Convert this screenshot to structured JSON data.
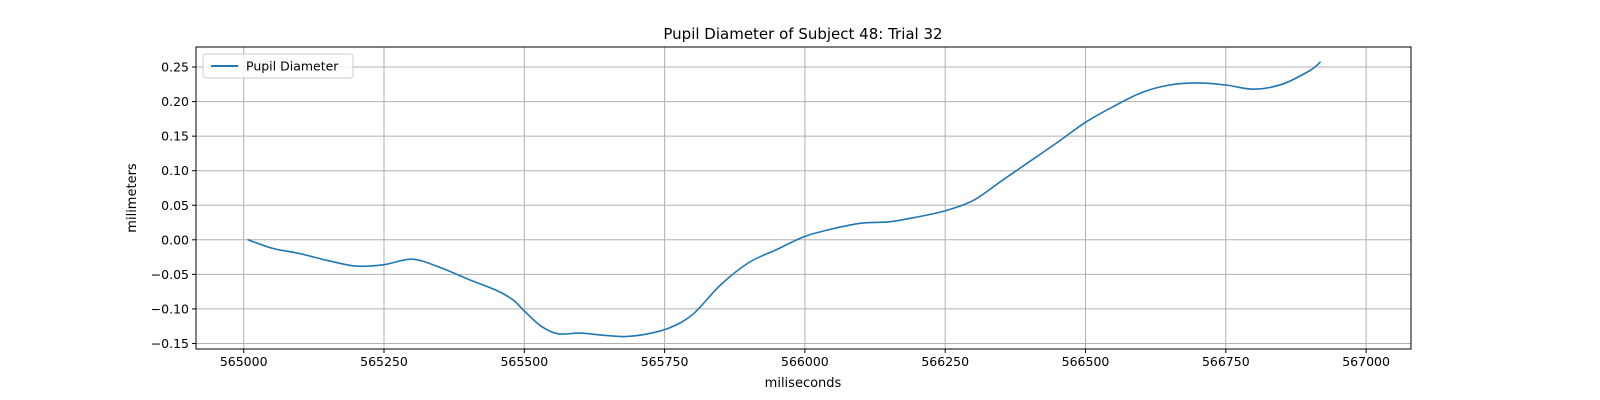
{
  "chart_data": {
    "type": "line",
    "title": "Pupil Diameter of Subject 48: Trial 32",
    "xlabel": "miliseconds",
    "ylabel": "milimeters",
    "xlim": [
      564915,
      567080
    ],
    "ylim": [
      -0.158,
      0.279
    ],
    "xticks": [
      565000,
      565250,
      565500,
      565750,
      566000,
      566250,
      566500,
      566750,
      567000
    ],
    "yticks": [
      -0.15,
      -0.1,
      -0.05,
      0.0,
      0.05,
      0.1,
      0.15,
      0.2,
      0.25
    ],
    "xtick_labels": [
      "565000",
      "565250",
      "565500",
      "565750",
      "566000",
      "566250",
      "566500",
      "566750",
      "567000"
    ],
    "ytick_labels": [
      "−0.15",
      "−0.10",
      "−0.05",
      "0.00",
      "0.05",
      "0.10",
      "0.15",
      "0.20",
      "0.25"
    ],
    "grid": true,
    "legend_position": "top-left",
    "series": [
      {
        "name": "Pupil Diameter",
        "color": "#1f77b4",
        "x": [
          565008,
          565050,
          565100,
          565150,
          565200,
          565250,
          565300,
          565350,
          565400,
          565450,
          565480,
          565500,
          565530,
          565560,
          565600,
          565640,
          565680,
          565720,
          565760,
          565800,
          565850,
          565900,
          565950,
          566000,
          566050,
          566100,
          566150,
          566200,
          566250,
          566300,
          566350,
          566400,
          566450,
          566500,
          566550,
          566600,
          566650,
          566700,
          566750,
          566800,
          566850,
          566900,
          566918
        ],
        "y": [
          0.0,
          -0.012,
          -0.02,
          -0.03,
          -0.038,
          -0.036,
          -0.028,
          -0.04,
          -0.057,
          -0.073,
          -0.087,
          -0.103,
          -0.125,
          -0.136,
          -0.135,
          -0.138,
          -0.14,
          -0.136,
          -0.127,
          -0.108,
          -0.065,
          -0.033,
          -0.014,
          0.005,
          0.016,
          0.024,
          0.026,
          0.033,
          0.042,
          0.057,
          0.085,
          0.113,
          0.141,
          0.17,
          0.193,
          0.213,
          0.224,
          0.227,
          0.224,
          0.218,
          0.225,
          0.245,
          0.257
        ]
      }
    ]
  }
}
